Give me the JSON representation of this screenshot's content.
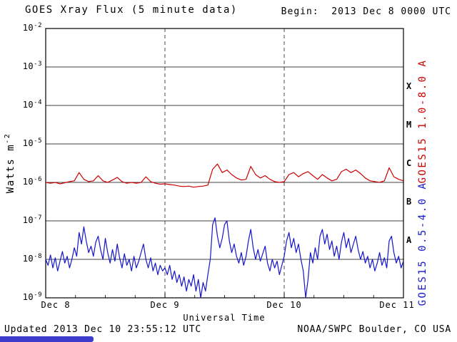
{
  "header": {
    "title": "GOES Xray Flux (5 minute data)",
    "begin": "Begin:  2013 Dec 8 0000 UTC"
  },
  "axes": {
    "x_title": "Universal Time",
    "y_title_text": "Watts m",
    "y_title_exp": "-2",
    "y_tick_base": "10"
  },
  "footer": {
    "updated": "Updated 2013 Dec 10 23:55:12 UTC",
    "source": "NOAA/SWPC Boulder, CO USA"
  },
  "colors": {
    "long_wavelength": "#cc0000",
    "short_wavelength": "#1515cc",
    "grid": "#000000",
    "accent_bar": "#3c3ccc"
  },
  "chart_data": {
    "type": "line",
    "title": "GOES Xray Flux (5 minute data)",
    "xlabel": "Universal Time",
    "ylabel": "Watts m-2",
    "yscale": "log",
    "xlim": [
      0,
      3
    ],
    "ylim": [
      1e-09,
      0.01
    ],
    "x_unit": "days since 2013 Dec 8 0000 UTC",
    "grid": "horizontal solid per decade, vertical dashed at day boundaries",
    "legend_position": "right-rotated",
    "x_ticks": [
      {
        "x": 0,
        "label": "Dec 8"
      },
      {
        "x": 1,
        "label": "Dec 9"
      },
      {
        "x": 2,
        "label": "Dec 10"
      },
      {
        "x": 3,
        "label": "Dec 11"
      }
    ],
    "y_tick_exponents": [
      -2,
      -3,
      -4,
      -5,
      -6,
      -7,
      -8,
      -9
    ],
    "grid_vertical_x": [
      1,
      2
    ],
    "flare_classes": [
      {
        "label": "X",
        "log_center": -3.5
      },
      {
        "label": "M",
        "log_center": -4.5
      },
      {
        "label": "C",
        "log_center": -5.5
      },
      {
        "label": "B",
        "log_center": -6.5
      },
      {
        "label": "A",
        "log_center": -7.5
      }
    ],
    "series": [
      {
        "name": "GOES15 1.0-8.0 A",
        "color": "#cc0000",
        "points": [
          [
            0.0,
            1e-06
          ],
          [
            0.04,
            9.5e-07
          ],
          [
            0.08,
            1e-06
          ],
          [
            0.12,
            9.2e-07
          ],
          [
            0.16,
            9.8e-07
          ],
          [
            0.2,
            1.05e-06
          ],
          [
            0.24,
            1.1e-06
          ],
          [
            0.28,
            1.8e-06
          ],
          [
            0.32,
            1.2e-06
          ],
          [
            0.36,
            1.05e-06
          ],
          [
            0.4,
            1.1e-06
          ],
          [
            0.44,
            1.5e-06
          ],
          [
            0.48,
            1.1e-06
          ],
          [
            0.52,
            1e-06
          ],
          [
            0.56,
            1.15e-06
          ],
          [
            0.6,
            1.35e-06
          ],
          [
            0.64,
            1.05e-06
          ],
          [
            0.68,
            9.5e-07
          ],
          [
            0.72,
            1e-06
          ],
          [
            0.76,
            9.5e-07
          ],
          [
            0.8,
            1e-06
          ],
          [
            0.84,
            1.4e-06
          ],
          [
            0.88,
            1.05e-06
          ],
          [
            0.92,
            9.5e-07
          ],
          [
            0.96,
            9e-07
          ],
          [
            1.0,
            9.2e-07
          ],
          [
            1.04,
            8.8e-07
          ],
          [
            1.08,
            8.5e-07
          ],
          [
            1.12,
            8e-07
          ],
          [
            1.16,
            7.8e-07
          ],
          [
            1.2,
            8e-07
          ],
          [
            1.24,
            7.5e-07
          ],
          [
            1.28,
            7.8e-07
          ],
          [
            1.32,
            8e-07
          ],
          [
            1.36,
            8.5e-07
          ],
          [
            1.4,
            2.2e-06
          ],
          [
            1.44,
            3e-06
          ],
          [
            1.48,
            1.8e-06
          ],
          [
            1.52,
            2.1e-06
          ],
          [
            1.56,
            1.6e-06
          ],
          [
            1.6,
            1.3e-06
          ],
          [
            1.64,
            1.15e-06
          ],
          [
            1.68,
            1.2e-06
          ],
          [
            1.72,
            2.6e-06
          ],
          [
            1.76,
            1.6e-06
          ],
          [
            1.8,
            1.3e-06
          ],
          [
            1.84,
            1.5e-06
          ],
          [
            1.88,
            1.2e-06
          ],
          [
            1.92,
            1.05e-06
          ],
          [
            1.96,
            1e-06
          ],
          [
            2.0,
            1.05e-06
          ],
          [
            2.04,
            1.6e-06
          ],
          [
            2.08,
            1.8e-06
          ],
          [
            2.12,
            1.4e-06
          ],
          [
            2.16,
            1.7e-06
          ],
          [
            2.2,
            1.9e-06
          ],
          [
            2.24,
            1.5e-06
          ],
          [
            2.28,
            1.2e-06
          ],
          [
            2.32,
            1.6e-06
          ],
          [
            2.36,
            1.3e-06
          ],
          [
            2.4,
            1.1e-06
          ],
          [
            2.44,
            1.2e-06
          ],
          [
            2.48,
            1.9e-06
          ],
          [
            2.52,
            2.2e-06
          ],
          [
            2.56,
            1.8e-06
          ],
          [
            2.6,
            2.1e-06
          ],
          [
            2.64,
            1.7e-06
          ],
          [
            2.68,
            1.3e-06
          ],
          [
            2.72,
            1.1e-06
          ],
          [
            2.76,
            1.05e-06
          ],
          [
            2.8,
            1e-06
          ],
          [
            2.84,
            1.1e-06
          ],
          [
            2.88,
            2.4e-06
          ],
          [
            2.92,
            1.4e-06
          ],
          [
            2.96,
            1.2e-06
          ],
          [
            3.0,
            1.1e-06
          ]
        ]
      },
      {
        "name": "GOES15 0.5-4.0 A",
        "color": "#1515cc",
        "points": [
          [
            0.0,
            1e-08
          ],
          [
            0.02,
            7e-09
          ],
          [
            0.04,
            1.3e-08
          ],
          [
            0.06,
            6e-09
          ],
          [
            0.08,
            1.1e-08
          ],
          [
            0.1,
            5e-09
          ],
          [
            0.12,
            9e-09
          ],
          [
            0.14,
            1.6e-08
          ],
          [
            0.16,
            8e-09
          ],
          [
            0.18,
            1.2e-08
          ],
          [
            0.2,
            6e-09
          ],
          [
            0.22,
            1e-08
          ],
          [
            0.24,
            2e-08
          ],
          [
            0.26,
            1.2e-08
          ],
          [
            0.28,
            5e-08
          ],
          [
            0.3,
            2.5e-08
          ],
          [
            0.32,
            7e-08
          ],
          [
            0.34,
            3e-08
          ],
          [
            0.36,
            1.5e-08
          ],
          [
            0.38,
            2.2e-08
          ],
          [
            0.4,
            1.2e-08
          ],
          [
            0.42,
            2.8e-08
          ],
          [
            0.44,
            4e-08
          ],
          [
            0.46,
            1.8e-08
          ],
          [
            0.48,
            1e-08
          ],
          [
            0.5,
            3.5e-08
          ],
          [
            0.52,
            1.5e-08
          ],
          [
            0.54,
            8e-09
          ],
          [
            0.56,
            1.8e-08
          ],
          [
            0.58,
            9e-09
          ],
          [
            0.6,
            2.5e-08
          ],
          [
            0.62,
            1.1e-08
          ],
          [
            0.64,
            6e-09
          ],
          [
            0.66,
            1.4e-08
          ],
          [
            0.68,
            7e-09
          ],
          [
            0.7,
            1e-08
          ],
          [
            0.72,
            5e-09
          ],
          [
            0.74,
            1.2e-08
          ],
          [
            0.76,
            6e-09
          ],
          [
            0.78,
            9e-09
          ],
          [
            0.8,
            1.5e-08
          ],
          [
            0.82,
            2.5e-08
          ],
          [
            0.84,
            1e-08
          ],
          [
            0.86,
            6e-09
          ],
          [
            0.88,
            1.1e-08
          ],
          [
            0.9,
            5e-09
          ],
          [
            0.92,
            8e-09
          ],
          [
            0.94,
            4e-09
          ],
          [
            0.96,
            7e-09
          ],
          [
            0.98,
            5e-09
          ],
          [
            1.0,
            6e-09
          ],
          [
            1.02,
            4e-09
          ],
          [
            1.04,
            7e-09
          ],
          [
            1.06,
            3e-09
          ],
          [
            1.08,
            5e-09
          ],
          [
            1.1,
            2.5e-09
          ],
          [
            1.12,
            4e-09
          ],
          [
            1.14,
            2e-09
          ],
          [
            1.16,
            3.5e-09
          ],
          [
            1.18,
            1.5e-09
          ],
          [
            1.2,
            3e-09
          ],
          [
            1.22,
            2e-09
          ],
          [
            1.24,
            4e-09
          ],
          [
            1.26,
            1.5e-09
          ],
          [
            1.28,
            3e-09
          ],
          [
            1.3,
            1e-09
          ],
          [
            1.32,
            2.5e-09
          ],
          [
            1.34,
            1.5e-09
          ],
          [
            1.36,
            4e-09
          ],
          [
            1.38,
            1e-08
          ],
          [
            1.4,
            8e-08
          ],
          [
            1.42,
            1.2e-07
          ],
          [
            1.44,
            4e-08
          ],
          [
            1.46,
            2e-08
          ],
          [
            1.48,
            3.5e-08
          ],
          [
            1.5,
            8e-08
          ],
          [
            1.52,
            1e-07
          ],
          [
            1.54,
            3e-08
          ],
          [
            1.56,
            1.5e-08
          ],
          [
            1.58,
            2.5e-08
          ],
          [
            1.6,
            1.2e-08
          ],
          [
            1.62,
            8e-09
          ],
          [
            1.64,
            1.5e-08
          ],
          [
            1.66,
            7e-09
          ],
          [
            1.68,
            1.2e-08
          ],
          [
            1.7,
            3e-08
          ],
          [
            1.72,
            6e-08
          ],
          [
            1.74,
            2e-08
          ],
          [
            1.76,
            1e-08
          ],
          [
            1.78,
            1.8e-08
          ],
          [
            1.8,
            9e-09
          ],
          [
            1.82,
            1.4e-08
          ],
          [
            1.84,
            2.2e-08
          ],
          [
            1.86,
            8e-09
          ],
          [
            1.88,
            5e-09
          ],
          [
            1.9,
            1e-08
          ],
          [
            1.92,
            6e-09
          ],
          [
            1.94,
            9e-09
          ],
          [
            1.96,
            4e-09
          ],
          [
            1.98,
            7e-09
          ],
          [
            2.0,
            1.2e-08
          ],
          [
            2.02,
            3e-08
          ],
          [
            2.04,
            5e-08
          ],
          [
            2.06,
            2e-08
          ],
          [
            2.08,
            3.5e-08
          ],
          [
            2.1,
            1.5e-08
          ],
          [
            2.12,
            2.5e-08
          ],
          [
            2.14,
            1e-08
          ],
          [
            2.16,
            5e-09
          ],
          [
            2.18,
            1e-09
          ],
          [
            2.2,
            3e-09
          ],
          [
            2.22,
            1.5e-08
          ],
          [
            2.24,
            8e-09
          ],
          [
            2.26,
            2e-08
          ],
          [
            2.28,
            1e-08
          ],
          [
            2.3,
            4e-08
          ],
          [
            2.32,
            6e-08
          ],
          [
            2.34,
            2.5e-08
          ],
          [
            2.36,
            4.5e-08
          ],
          [
            2.38,
            1.8e-08
          ],
          [
            2.4,
            3e-08
          ],
          [
            2.42,
            1.2e-08
          ],
          [
            2.44,
            2.2e-08
          ],
          [
            2.46,
            1e-08
          ],
          [
            2.48,
            2.8e-08
          ],
          [
            2.5,
            5e-08
          ],
          [
            2.52,
            2e-08
          ],
          [
            2.54,
            3.5e-08
          ],
          [
            2.56,
            1.5e-08
          ],
          [
            2.58,
            2.5e-08
          ],
          [
            2.6,
            4e-08
          ],
          [
            2.62,
            1.8e-08
          ],
          [
            2.64,
            1e-08
          ],
          [
            2.66,
            1.6e-08
          ],
          [
            2.68,
            8e-09
          ],
          [
            2.7,
            1.2e-08
          ],
          [
            2.72,
            6e-09
          ],
          [
            2.74,
            1e-08
          ],
          [
            2.76,
            5e-09
          ],
          [
            2.78,
            8e-09
          ],
          [
            2.8,
            1.5e-08
          ],
          [
            2.82,
            7e-09
          ],
          [
            2.84,
            1.1e-08
          ],
          [
            2.86,
            6e-09
          ],
          [
            2.88,
            3e-08
          ],
          [
            2.9,
            4e-08
          ],
          [
            2.92,
            1.5e-08
          ],
          [
            2.94,
            8e-09
          ],
          [
            2.96,
            1.2e-08
          ],
          [
            2.98,
            6e-09
          ],
          [
            3.0,
            9e-09
          ]
        ]
      }
    ]
  }
}
